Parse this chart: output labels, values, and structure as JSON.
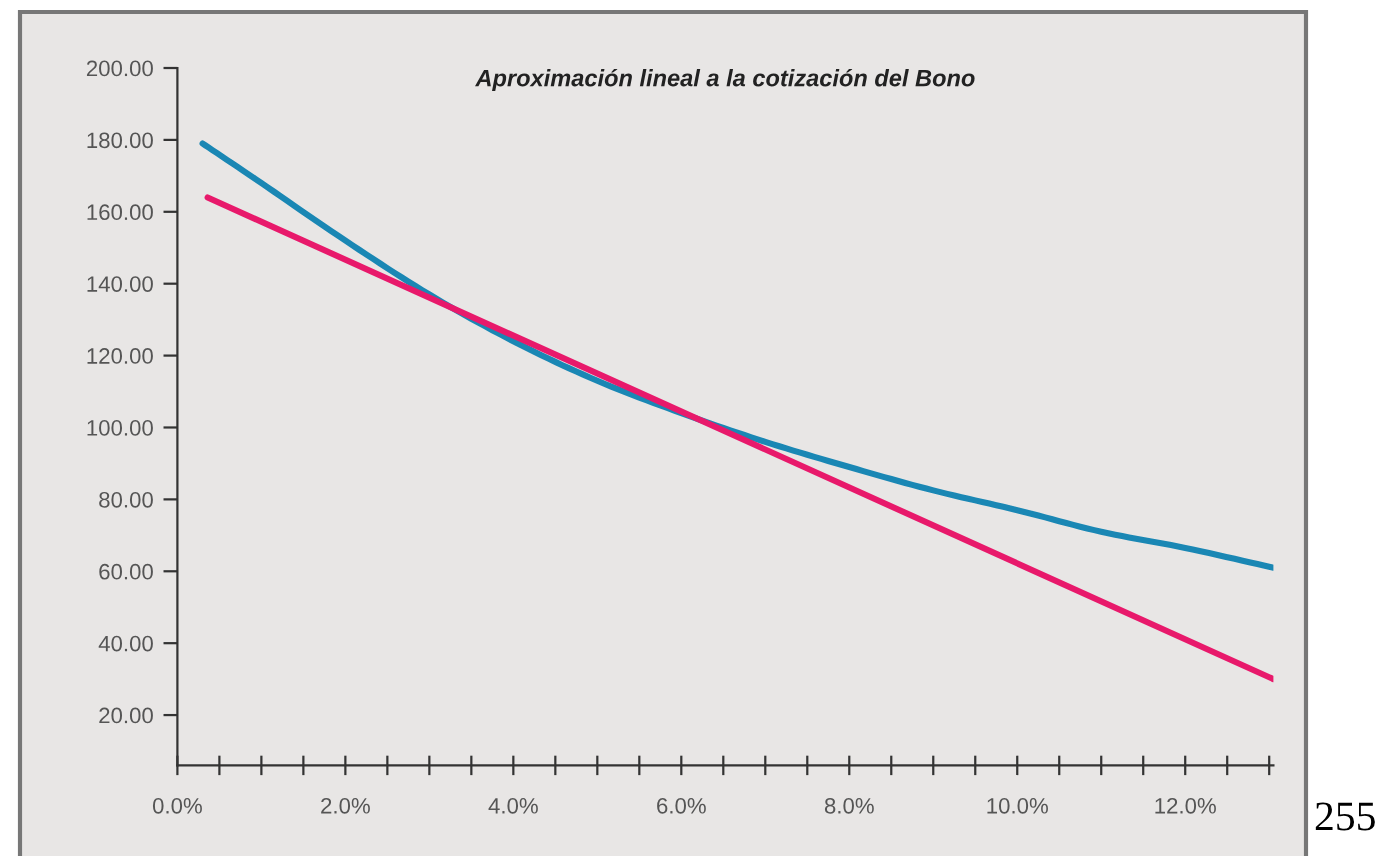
{
  "chart_data": {
    "type": "line",
    "title": "Aproximación lineal a la cotización del Bono",
    "series": [
      {
        "color": "#1a87b4",
        "x": [
          0.3,
          1,
          2,
          3,
          4,
          5,
          6,
          7,
          8,
          9,
          10,
          11,
          12,
          13.05
        ],
        "values": [
          179,
          168,
          152,
          137,
          124,
          113,
          104,
          96,
          89,
          82.5,
          77,
          71,
          66.5,
          61
        ]
      },
      {
        "color": "#e8196b",
        "x": [
          0.36,
          13.05
        ],
        "values": [
          164,
          30
        ]
      }
    ],
    "xlim": [
      0,
      13.05
    ],
    "ylim": [
      6,
      200
    ],
    "xticks": [
      {
        "value": 0,
        "label": "0.0%"
      },
      {
        "value": 0.5,
        "label": null
      },
      {
        "value": 1,
        "label": null
      },
      {
        "value": 1.5,
        "label": null
      },
      {
        "value": 2,
        "label": "2.0%"
      },
      {
        "value": 2.5,
        "label": null
      },
      {
        "value": 3,
        "label": null
      },
      {
        "value": 3.5,
        "label": null
      },
      {
        "value": 4,
        "label": "4.0%"
      },
      {
        "value": 4.5,
        "label": null
      },
      {
        "value": 5,
        "label": null
      },
      {
        "value": 5.5,
        "label": null
      },
      {
        "value": 6,
        "label": "6.0%"
      },
      {
        "value": 6.5,
        "label": null
      },
      {
        "value": 7,
        "label": null
      },
      {
        "value": 7.5,
        "label": null
      },
      {
        "value": 8,
        "label": "8.0%"
      },
      {
        "value": 8.5,
        "label": null
      },
      {
        "value": 9,
        "label": null
      },
      {
        "value": 9.5,
        "label": null
      },
      {
        "value": 10,
        "label": "10.0%"
      },
      {
        "value": 10.5,
        "label": null
      },
      {
        "value": 11,
        "label": null
      },
      {
        "value": 11.5,
        "label": null
      },
      {
        "value": 12,
        "label": "12.0%"
      },
      {
        "value": 12.5,
        "label": null
      },
      {
        "value": 13,
        "label": null
      }
    ],
    "yticks": [
      {
        "value": 20,
        "label": "20.00"
      },
      {
        "value": 40,
        "label": "40.00"
      },
      {
        "value": 60,
        "label": "60.00"
      },
      {
        "value": 80,
        "label": "80.00"
      },
      {
        "value": 100,
        "label": "100.00"
      },
      {
        "value": 120,
        "label": "120.00"
      },
      {
        "value": 140,
        "label": "140.00"
      },
      {
        "value": 160,
        "label": "160.00"
      },
      {
        "value": 180,
        "label": "180.00"
      },
      {
        "value": 200,
        "label": "200.00"
      }
    ],
    "annotations": [
      "255"
    ],
    "grid": false,
    "marker": "none",
    "line_style": "solid"
  }
}
